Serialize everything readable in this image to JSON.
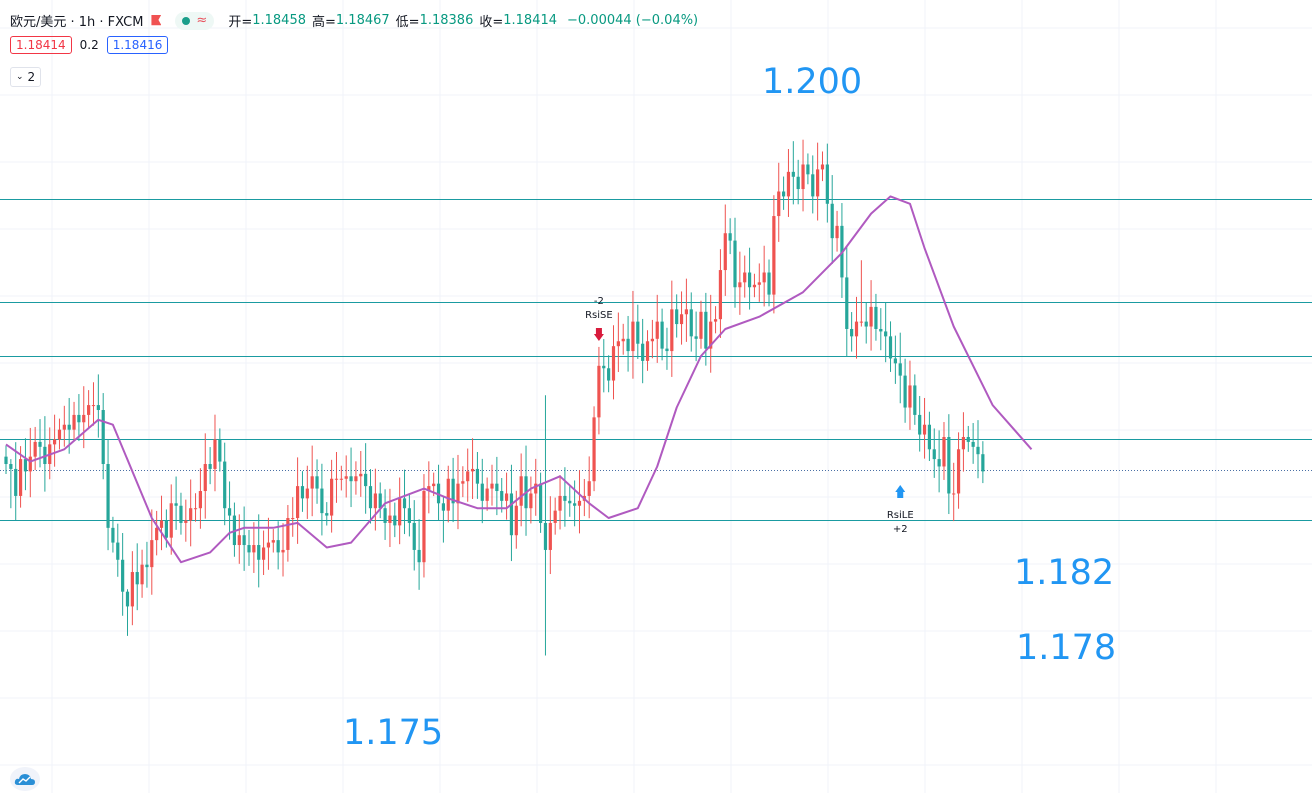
{
  "header": {
    "symbol": "欧元/美元 · 1h · FXCM",
    "ohlc": {
      "open_label": "开=",
      "open": "1.18458",
      "high_label": "高=",
      "high": "1.18467",
      "low_label": "低=",
      "low": "1.18386",
      "close_label": "收=",
      "close": "1.18414",
      "change": "−0.00044 (−0.04%)"
    },
    "bid": "1.18414",
    "spread": "0.2",
    "ask": "1.18416",
    "indicator_count": "2",
    "icons": [
      "flag-icon",
      "dot-icon",
      "wave-icon",
      "chevron-down-icon",
      "cloud-logo-icon"
    ]
  },
  "annotations": {
    "levels": [
      "1.200",
      "1.182",
      "1.178",
      "1.175"
    ],
    "signal_short": {
      "qty": "-2",
      "name": "RsiSE"
    },
    "signal_long": {
      "name": "RsiLE",
      "qty": "+2"
    }
  },
  "colors": {
    "up": "#ef5350",
    "down": "#26a69a",
    "ma": "#b05ac0",
    "level_line": "#1a9ba1",
    "level_text": "#2196f3",
    "grid": "#f0f3fa"
  },
  "chart_data": {
    "type": "candlestick",
    "ylim": [
      1.171,
      1.2033
    ],
    "current_price": 1.18414,
    "horizontal_levels": [
      1.1952,
      1.191,
      1.1888,
      1.1854,
      1.1821
    ],
    "signals": [
      {
        "label": "RsiSE",
        "qty": "-2",
        "index": 122
      },
      {
        "label": "RsiLE",
        "qty": "+2",
        "index": 184
      }
    ],
    "closes": [
      1.1844,
      1.1842,
      1.1831,
      1.1846,
      1.1841,
      1.1847,
      1.1853,
      1.1851,
      1.1844,
      1.1852,
      1.1854,
      1.1858,
      1.186,
      1.1858,
      1.1864,
      1.1861,
      1.1864,
      1.1868,
      1.1868,
      1.1866,
      1.1844,
      1.1818,
      1.1812,
      1.1805,
      1.1792,
      1.1786,
      1.18,
      1.1795,
      1.1803,
      1.1802,
      1.1813,
      1.1818,
      1.1821,
      1.1814,
      1.1828,
      1.1827,
      1.182,
      1.1821,
      1.1826,
      1.1826,
      1.1833,
      1.1844,
      1.1842,
      1.1854,
      1.1845,
      1.1826,
      1.1823,
      1.1811,
      1.1815,
      1.1811,
      1.1808,
      1.1811,
      1.1805,
      1.181,
      1.1812,
      1.1813,
      1.1808,
      1.1809,
      1.1822,
      1.1822,
      1.1835,
      1.183,
      1.1834,
      1.1839,
      1.1834,
      1.1824,
      1.1823,
      1.1838,
      1.1838,
      1.1838,
      1.1839,
      1.1837,
      1.1839,
      1.184,
      1.1835,
      1.1826,
      1.1832,
      1.1826,
      1.182,
      1.1823,
      1.1819,
      1.183,
      1.1826,
      1.182,
      1.1809,
      1.1804,
      1.1833,
      1.1835,
      1.1836,
      1.1828,
      1.1825,
      1.1838,
      1.1828,
      1.1836,
      1.1837,
      1.1841,
      1.1842,
      1.1836,
      1.1829,
      1.1834,
      1.1836,
      1.1833,
      1.1829,
      1.1832,
      1.1815,
      1.1827,
      1.1839,
      1.1826,
      1.1832,
      1.1836,
      1.182,
      1.1809,
      1.182,
      1.1825,
      1.1831,
      1.1829,
      1.1828,
      1.1827,
      1.1829,
      1.1831,
      1.1837,
      1.1863,
      1.1884,
      1.1883,
      1.1878,
      1.1892,
      1.1894,
      1.1895,
      1.189,
      1.1902,
      1.1893,
      1.1886,
      1.1894,
      1.1895,
      1.1902,
      1.1891,
      1.189,
      1.1907,
      1.1901,
      1.1905,
      1.1907,
      1.1896,
      1.1895,
      1.1906,
      1.1891,
      1.1902,
      1.1903,
      1.1923,
      1.1938,
      1.1935,
      1.1916,
      1.1918,
      1.1922,
      1.1916,
      1.1917,
      1.1918,
      1.1922,
      1.1913,
      1.1945,
      1.1955,
      1.1953,
      1.1963,
      1.1961,
      1.1956,
      1.1966,
      1.1962,
      1.1953,
      1.1964,
      1.1966,
      1.195,
      1.1936,
      1.1941,
      1.192,
      1.1899,
      1.1896,
      1.1902,
      1.1902,
      1.19,
      1.1908,
      1.1899,
      1.1898,
      1.1896,
      1.1887,
      1.1885,
      1.188,
      1.1867,
      1.1876,
      1.1864,
      1.1856,
      1.186,
      1.185,
      1.1846,
      1.1843,
      1.1855,
      1.1832,
      1.1832,
      1.185,
      1.1855,
      1.1853,
      1.1851,
      1.1848,
      1.1841
    ],
    "ma": {
      "name": "",
      "samples": [
        [
          0,
          1.1852
        ],
        [
          5,
          1.1845
        ],
        [
          12,
          1.185
        ],
        [
          19,
          1.1862
        ],
        [
          22,
          1.186
        ],
        [
          30,
          1.1822
        ],
        [
          36,
          1.1804
        ],
        [
          42,
          1.1808
        ],
        [
          46,
          1.1816
        ],
        [
          49,
          1.1818
        ],
        [
          55,
          1.1818
        ],
        [
          60,
          1.182
        ],
        [
          66,
          1.181
        ],
        [
          71,
          1.1812
        ],
        [
          78,
          1.1828
        ],
        [
          86,
          1.1834
        ],
        [
          91,
          1.183
        ],
        [
          97,
          1.1826
        ],
        [
          103,
          1.1826
        ],
        [
          108,
          1.1834
        ],
        [
          114,
          1.1839
        ],
        [
          120,
          1.1828
        ],
        [
          124,
          1.1822
        ],
        [
          130,
          1.1826
        ],
        [
          134,
          1.1843
        ],
        [
          138,
          1.1867
        ],
        [
          143,
          1.1888
        ],
        [
          148,
          1.1899
        ],
        [
          155,
          1.1904
        ],
        [
          164,
          1.1914
        ],
        [
          172,
          1.193
        ],
        [
          178,
          1.1946
        ],
        [
          182,
          1.1953
        ],
        [
          186,
          1.195
        ],
        [
          189,
          1.1932
        ],
        [
          195,
          1.19
        ],
        [
          203,
          1.1868
        ],
        [
          211,
          1.185
        ]
      ]
    }
  }
}
